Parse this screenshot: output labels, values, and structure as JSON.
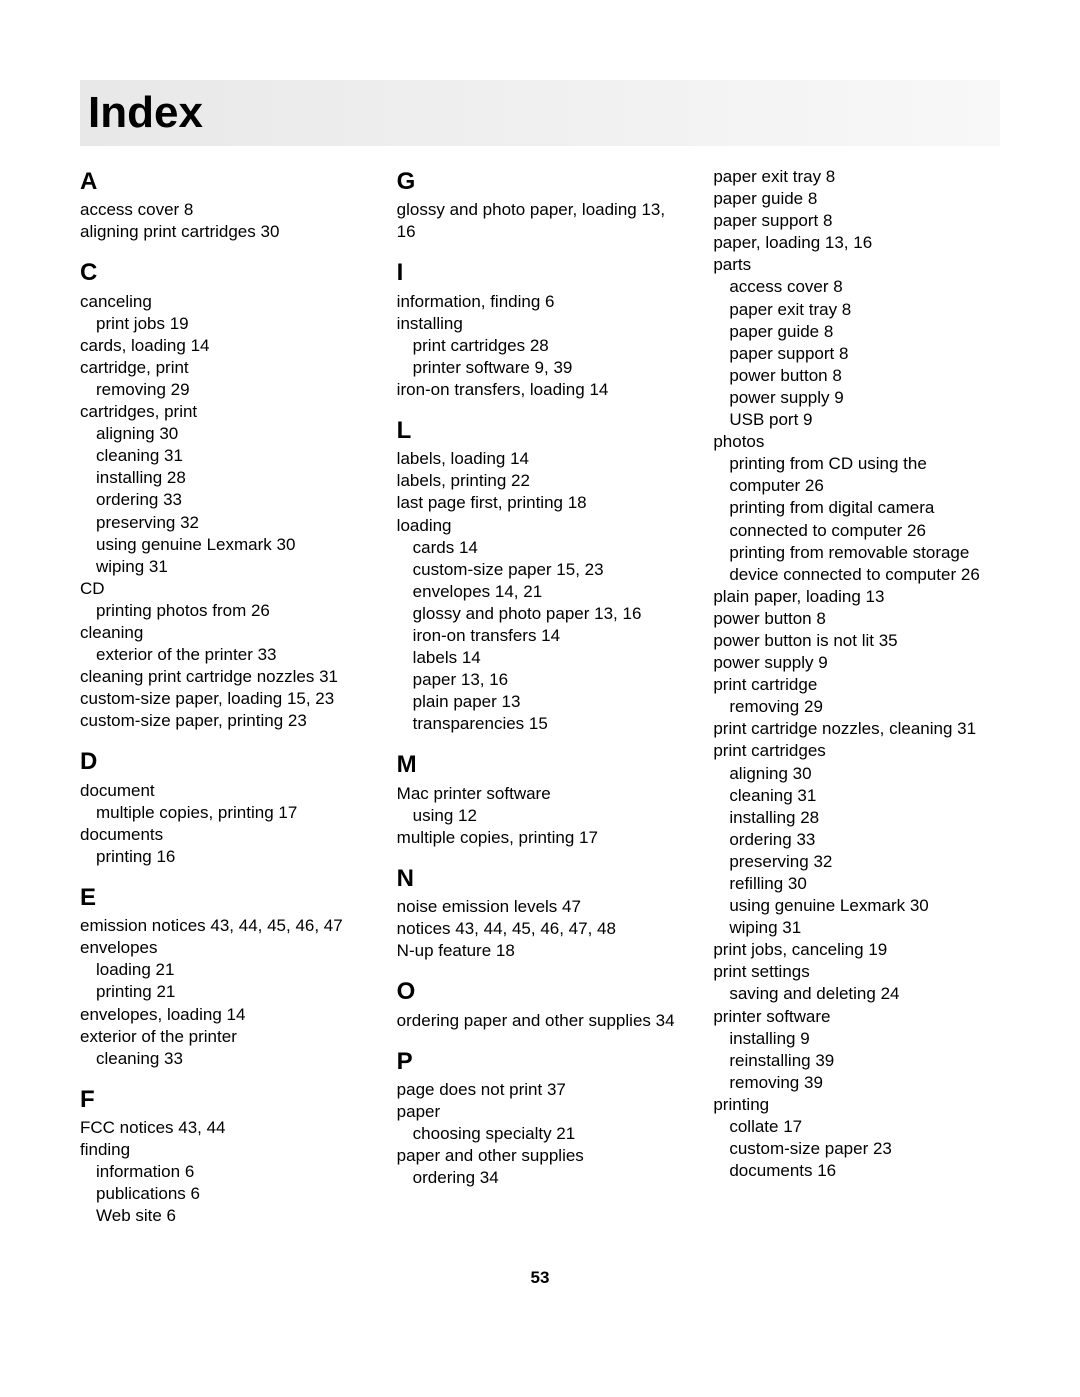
{
  "title": "Index",
  "pageNumber": "53",
  "columns": [
    {
      "sections": [
        {
          "letter": "A",
          "first": true,
          "lines": [
            {
              "t": "access cover  8",
              "i": 0
            },
            {
              "t": "aligning print cartridges  30",
              "i": 0
            }
          ]
        },
        {
          "letter": "C",
          "lines": [
            {
              "t": "canceling",
              "i": 0
            },
            {
              "t": "print jobs  19",
              "i": 1
            },
            {
              "t": "cards, loading  14",
              "i": 0
            },
            {
              "t": "cartridge, print",
              "i": 0
            },
            {
              "t": "removing  29",
              "i": 1
            },
            {
              "t": "cartridges, print",
              "i": 0
            },
            {
              "t": "aligning  30",
              "i": 1
            },
            {
              "t": "cleaning  31",
              "i": 1
            },
            {
              "t": "installing  28",
              "i": 1
            },
            {
              "t": "ordering  33",
              "i": 1
            },
            {
              "t": "preserving  32",
              "i": 1
            },
            {
              "t": "using genuine Lexmark  30",
              "i": 1
            },
            {
              "t": "wiping  31",
              "i": 1
            },
            {
              "t": "CD",
              "i": 0
            },
            {
              "t": "printing photos from  26",
              "i": 1
            },
            {
              "t": "cleaning",
              "i": 0
            },
            {
              "t": "exterior of the printer  33",
              "i": 1
            },
            {
              "t": "cleaning print cartridge nozzles  31",
              "i": 0
            },
            {
              "t": "custom-size paper, loading  15, 23",
              "i": 0
            },
            {
              "t": "custom-size paper, printing  23",
              "i": 0
            }
          ]
        },
        {
          "letter": "D",
          "lines": [
            {
              "t": "document",
              "i": 0
            },
            {
              "t": "multiple copies, printing  17",
              "i": 1
            },
            {
              "t": "documents",
              "i": 0
            },
            {
              "t": "printing  16",
              "i": 1
            }
          ]
        },
        {
          "letter": "E",
          "lines": [
            {
              "t": "emission notices  43, 44, 45, 46, 47",
              "i": 0
            },
            {
              "t": "envelopes",
              "i": 0
            },
            {
              "t": "loading  21",
              "i": 1
            },
            {
              "t": "printing  21",
              "i": 1
            },
            {
              "t": "envelopes, loading  14",
              "i": 0
            },
            {
              "t": "exterior of the printer",
              "i": 0
            },
            {
              "t": "cleaning  33",
              "i": 1
            }
          ]
        },
        {
          "letter": "F",
          "lines": [
            {
              "t": "FCC notices  43, 44",
              "i": 0
            },
            {
              "t": "finding",
              "i": 0
            },
            {
              "t": "information  6",
              "i": 1
            },
            {
              "t": "publications  6",
              "i": 1
            },
            {
              "t": "Web site  6",
              "i": 1
            }
          ]
        }
      ]
    },
    {
      "sections": [
        {
          "letter": "G",
          "first": true,
          "lines": [
            {
              "t": "glossy and photo paper, loading  13, 16",
              "i": 0
            }
          ]
        },
        {
          "letter": "I",
          "lines": [
            {
              "t": "information, finding  6",
              "i": 0
            },
            {
              "t": "installing",
              "i": 0
            },
            {
              "t": "print cartridges  28",
              "i": 1
            },
            {
              "t": "printer software  9, 39",
              "i": 1
            },
            {
              "t": "iron-on transfers, loading  14",
              "i": 0
            }
          ]
        },
        {
          "letter": "L",
          "lines": [
            {
              "t": "labels, loading  14",
              "i": 0
            },
            {
              "t": "labels, printing  22",
              "i": 0
            },
            {
              "t": "last page first, printing  18",
              "i": 0
            },
            {
              "t": "loading",
              "i": 0
            },
            {
              "t": "cards  14",
              "i": 1
            },
            {
              "t": "custom-size paper  15, 23",
              "i": 1
            },
            {
              "t": "envelopes  14, 21",
              "i": 1
            },
            {
              "t": "glossy and photo paper  13, 16",
              "i": 1
            },
            {
              "t": "iron-on transfers  14",
              "i": 1
            },
            {
              "t": "labels  14",
              "i": 1
            },
            {
              "t": "paper  13, 16",
              "i": 1
            },
            {
              "t": "plain paper  13",
              "i": 1
            },
            {
              "t": "transparencies  15",
              "i": 1
            }
          ]
        },
        {
          "letter": "M",
          "lines": [
            {
              "t": "Mac printer software",
              "i": 0
            },
            {
              "t": "using  12",
              "i": 1
            },
            {
              "t": "multiple copies, printing  17",
              "i": 0
            }
          ]
        },
        {
          "letter": "N",
          "lines": [
            {
              "t": "noise emission levels  47",
              "i": 0
            },
            {
              "t": "notices  43, 44, 45, 46, 47, 48",
              "i": 0
            },
            {
              "t": "N-up feature  18",
              "i": 0
            }
          ]
        },
        {
          "letter": "O",
          "lines": [
            {
              "t": "ordering paper and other supplies  34",
              "i": 0
            }
          ]
        },
        {
          "letter": "P",
          "lines": [
            {
              "t": "page does not print  37",
              "i": 0
            },
            {
              "t": "paper",
              "i": 0
            },
            {
              "t": "choosing specialty  21",
              "i": 1
            },
            {
              "t": "paper and other supplies",
              "i": 0
            },
            {
              "t": "ordering  34",
              "i": 1
            }
          ]
        }
      ]
    },
    {
      "sections": [
        {
          "letter": "",
          "first": true,
          "lines": [
            {
              "t": "paper exit tray  8",
              "i": 0
            },
            {
              "t": "paper guide  8",
              "i": 0
            },
            {
              "t": "paper support  8",
              "i": 0
            },
            {
              "t": "paper, loading  13, 16",
              "i": 0
            },
            {
              "t": "parts",
              "i": 0
            },
            {
              "t": "access cover  8",
              "i": 1
            },
            {
              "t": "paper exit tray  8",
              "i": 1
            },
            {
              "t": "paper guide  8",
              "i": 1
            },
            {
              "t": "paper support  8",
              "i": 1
            },
            {
              "t": "power button  8",
              "i": 1
            },
            {
              "t": "power supply  9",
              "i": 1
            },
            {
              "t": "USB port  9",
              "i": 1
            },
            {
              "t": "photos",
              "i": 0
            },
            {
              "t": "printing from CD using the computer  26",
              "i": 1
            },
            {
              "t": "printing from digital camera connected to computer  26",
              "i": 1
            },
            {
              "t": "printing from removable storage device connected to computer  26",
              "i": 1
            },
            {
              "t": "plain paper, loading  13",
              "i": 0
            },
            {
              "t": "power button  8",
              "i": 0
            },
            {
              "t": "power button is not lit  35",
              "i": 0
            },
            {
              "t": "power supply  9",
              "i": 0
            },
            {
              "t": "print cartridge",
              "i": 0
            },
            {
              "t": "removing  29",
              "i": 1
            },
            {
              "t": "print cartridge nozzles, cleaning  31",
              "i": 0
            },
            {
              "t": "print cartridges",
              "i": 0
            },
            {
              "t": "aligning  30",
              "i": 1
            },
            {
              "t": "cleaning  31",
              "i": 1
            },
            {
              "t": "installing  28",
              "i": 1
            },
            {
              "t": "ordering  33",
              "i": 1
            },
            {
              "t": "preserving  32",
              "i": 1
            },
            {
              "t": "refilling  30",
              "i": 1
            },
            {
              "t": "using genuine Lexmark  30",
              "i": 1
            },
            {
              "t": "wiping  31",
              "i": 1
            },
            {
              "t": "print jobs, canceling  19",
              "i": 0
            },
            {
              "t": "print settings",
              "i": 0
            },
            {
              "t": "saving and deleting  24",
              "i": 1
            },
            {
              "t": "printer software",
              "i": 0
            },
            {
              "t": "installing  9",
              "i": 1
            },
            {
              "t": "reinstalling  39",
              "i": 1
            },
            {
              "t": "removing  39",
              "i": 1
            },
            {
              "t": "printing",
              "i": 0
            },
            {
              "t": "collate  17",
              "i": 1
            },
            {
              "t": "custom-size paper  23",
              "i": 1
            },
            {
              "t": "documents  16",
              "i": 1
            }
          ]
        }
      ]
    }
  ]
}
